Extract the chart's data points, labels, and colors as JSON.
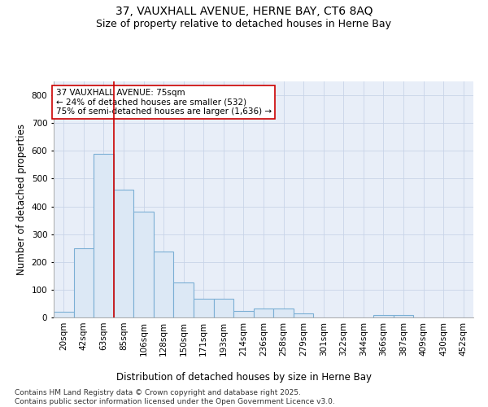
{
  "title": "37, VAUXHALL AVENUE, HERNE BAY, CT6 8AQ",
  "subtitle": "Size of property relative to detached houses in Herne Bay",
  "xlabel": "Distribution of detached houses by size in Herne Bay",
  "ylabel": "Number of detached properties",
  "categories": [
    "20sqm",
    "42sqm",
    "63sqm",
    "85sqm",
    "106sqm",
    "128sqm",
    "150sqm",
    "171sqm",
    "193sqm",
    "214sqm",
    "236sqm",
    "258sqm",
    "279sqm",
    "301sqm",
    "322sqm",
    "344sqm",
    "366sqm",
    "387sqm",
    "409sqm",
    "430sqm",
    "452sqm"
  ],
  "values": [
    20,
    250,
    590,
    460,
    380,
    238,
    125,
    68,
    68,
    22,
    32,
    33,
    14,
    0,
    0,
    0,
    10,
    10,
    0,
    0,
    0
  ],
  "bar_color": "#dce8f5",
  "bar_edge_color": "#7bafd4",
  "vline_x": 2.5,
  "vline_color": "#cc0000",
  "annotation_text": "37 VAUXHALL AVENUE: 75sqm\n← 24% of detached houses are smaller (532)\n75% of semi-detached houses are larger (1,636) →",
  "annotation_box_color": "#ffffff",
  "annotation_box_edge": "#cc0000",
  "ylim": [
    0,
    850
  ],
  "yticks": [
    0,
    100,
    200,
    300,
    400,
    500,
    600,
    700,
    800
  ],
  "grid_color": "#c8d4e8",
  "bg_color": "#e8eef8",
  "footnote": "Contains HM Land Registry data © Crown copyright and database right 2025.\nContains public sector information licensed under the Open Government Licence v3.0.",
  "title_fontsize": 10,
  "subtitle_fontsize": 9,
  "axis_label_fontsize": 8.5,
  "tick_fontsize": 7.5,
  "annotation_fontsize": 7.5,
  "footnote_fontsize": 6.5
}
